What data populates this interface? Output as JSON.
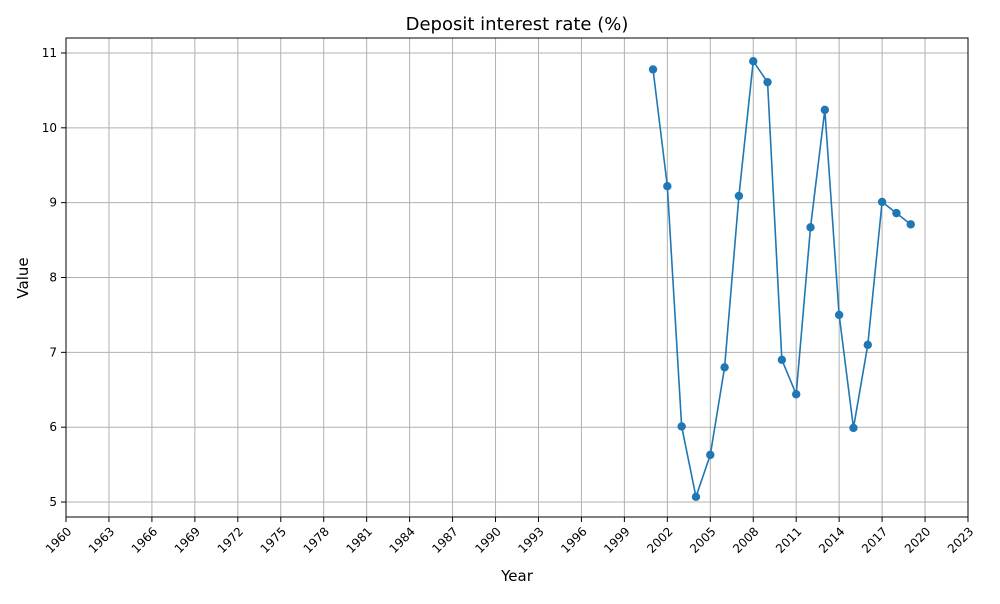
{
  "chart_data": {
    "type": "line",
    "title": "Deposit interest rate (%)",
    "xlabel": "Year",
    "ylabel": "Value",
    "xlim": [
      1960,
      2023
    ],
    "ylim": [
      4.8,
      11.2
    ],
    "x_ticks": [
      1960,
      1963,
      1966,
      1969,
      1972,
      1975,
      1978,
      1981,
      1984,
      1987,
      1990,
      1993,
      1996,
      1999,
      2002,
      2005,
      2008,
      2011,
      2014,
      2017,
      2020,
      2023
    ],
    "y_ticks": [
      5,
      6,
      7,
      8,
      9,
      10,
      11
    ],
    "grid": true,
    "color": "#1f77b4",
    "marker": "circle",
    "series": [
      {
        "x": [
          2001,
          2002,
          2003,
          2004,
          2005,
          2006,
          2007,
          2008,
          2009,
          2010,
          2011,
          2012,
          2013,
          2014,
          2015,
          2016,
          2017,
          2018,
          2019
        ],
        "values": [
          10.78,
          9.22,
          6.01,
          5.07,
          5.63,
          6.8,
          9.09,
          10.89,
          10.61,
          6.9,
          6.44,
          8.67,
          10.24,
          7.5,
          5.99,
          7.1,
          9.01,
          8.86,
          8.71
        ]
      }
    ]
  }
}
